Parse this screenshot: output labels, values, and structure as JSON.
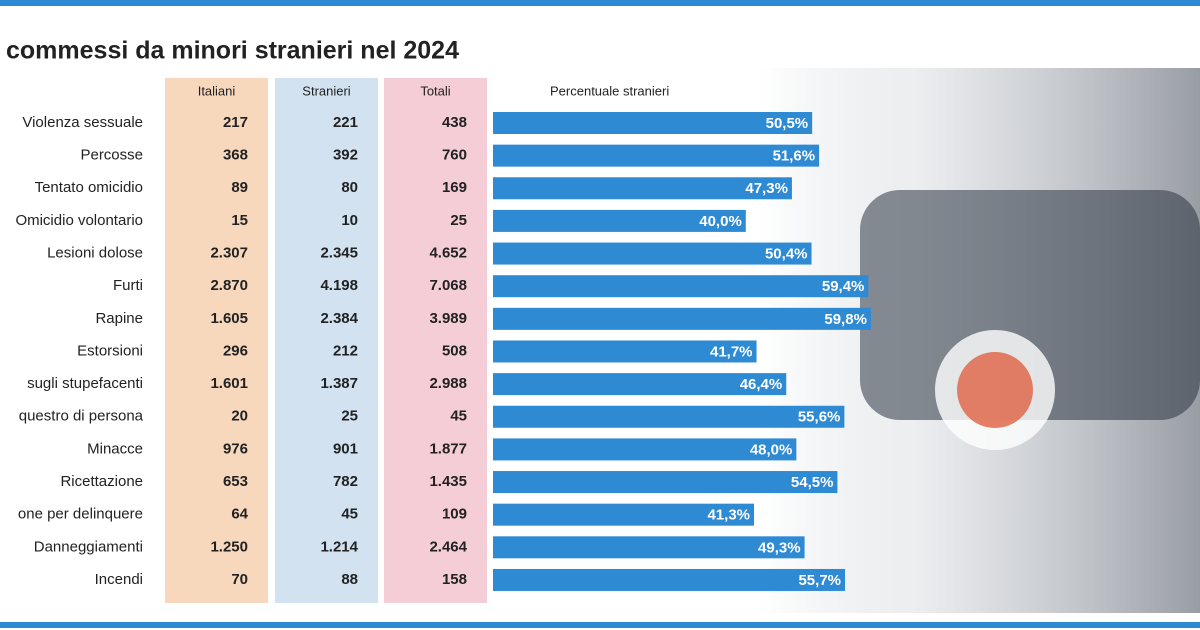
{
  "chart_data": {
    "type": "bar",
    "title": "commessi da minori stranieri nel 2024",
    "columns": [
      "Italiani",
      "Stranieri",
      "Totali"
    ],
    "value_title": "Percentuale stranieri",
    "categories": [
      "Violenza sessuale",
      "Percosse",
      "Tentato omicidio",
      "Omicidio volontario",
      "Lesioni dolose",
      "Furti",
      "Rapine",
      "Estorsioni",
      "sugli stupefacenti",
      "questro di persona",
      "Minacce",
      "Ricettazione",
      "one per delinquere",
      "Danneggiamenti",
      "Incendi"
    ],
    "table": [
      [
        "217",
        "221",
        "438"
      ],
      [
        "368",
        "392",
        "760"
      ],
      [
        "89",
        "80",
        "169"
      ],
      [
        "15",
        "10",
        "25"
      ],
      [
        "2.307",
        "2.345",
        "4.652"
      ],
      [
        "2.870",
        "4.198",
        "7.068"
      ],
      [
        "1.605",
        "2.384",
        "3.989"
      ],
      [
        "296",
        "212",
        "508"
      ],
      [
        "1.601",
        "1.387",
        "2.988"
      ],
      [
        "20",
        "25",
        "45"
      ],
      [
        "976",
        "901",
        "1.877"
      ],
      [
        "653",
        "782",
        "1.435"
      ],
      [
        "64",
        "45",
        "109"
      ],
      [
        "1.250",
        "1.214",
        "2.464"
      ],
      [
        "70",
        "88",
        "158"
      ]
    ],
    "values": [
      50.5,
      51.6,
      47.3,
      40.0,
      50.4,
      59.4,
      59.8,
      41.7,
      46.4,
      55.6,
      48.0,
      54.5,
      41.3,
      49.3,
      55.7
    ],
    "value_labels": [
      "50,5%",
      "51,6%",
      "47,3%",
      "40,0%",
      "50,4%",
      "59,4%",
      "59,8%",
      "41,7%",
      "46,4%",
      "55,6%",
      "48,0%",
      "54,5%",
      "41,3%",
      "49,3%",
      "55,7%"
    ],
    "color": "#2f8ad4",
    "column_colors": [
      "#f7d8bd",
      "#d2e2f0",
      "#f4cdd6"
    ]
  }
}
